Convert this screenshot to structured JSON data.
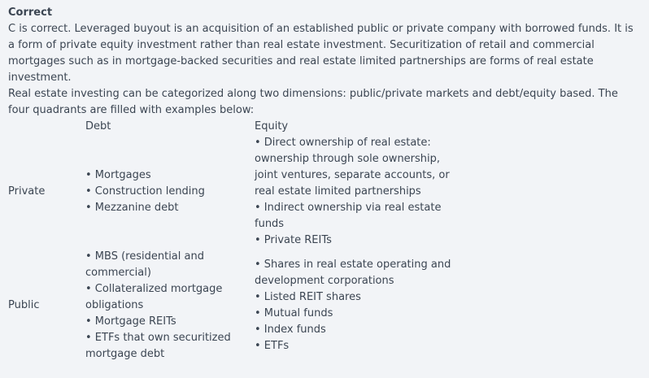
{
  "status_label": "Correct",
  "explanation_1": "C is correct. Leveraged buyout is an acquisition of an established public or private company with borrowed funds. It is a form of private equity investment rather than real estate investment. Securitization of retail and commercial mortgages such as in mortgage-backed securities and real estate limited partnerships are forms of real estate investment.",
  "explanation_2": "Real estate investing can be categorized along two dimensions: public/private markets and debt/equity based. The four quadrants are filled with examples below:",
  "table": {
    "col_debt": "Debt",
    "col_equity": "Equity",
    "rows": [
      {
        "label": "Private",
        "debt": [
          "• Mortgages",
          "• Construction lending",
          "• Mezzanine debt"
        ],
        "equity": [
          "• Direct ownership of real estate:",
          "ownership through sole ownership,",
          "joint ventures, separate accounts, or",
          "real estate limited partnerships",
          "• Indirect ownership via real estate",
          "funds",
          "• Private REITs"
        ]
      },
      {
        "label": "Public",
        "debt": [
          "• MBS (residential and",
          "commercial)",
          "• Collateralized mortgage",
          "obligations",
          "• Mortgage REITs",
          "• ETFs that own securitized",
          "mortgage debt"
        ],
        "equity": [
          "• Shares in real estate operating and",
          "development corporations",
          "• Listed REIT shares",
          "• Mutual funds",
          "• Index funds",
          "• ETFs"
        ]
      }
    ]
  }
}
